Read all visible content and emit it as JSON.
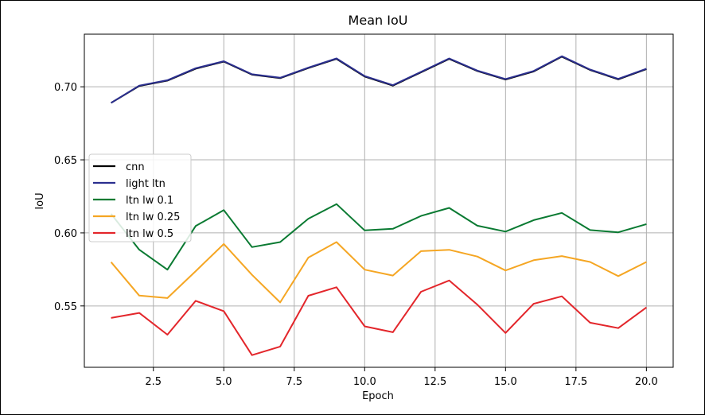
{
  "chart_data": {
    "type": "line",
    "title": "Mean IoU",
    "xlabel": "Epoch",
    "ylabel": "IoU",
    "xlim": [
      0.05,
      20.95
    ],
    "ylim": [
      0.508,
      0.736
    ],
    "xticks": [
      2.5,
      5.0,
      7.5,
      10.0,
      12.5,
      15.0,
      17.5,
      20.0
    ],
    "xtick_labels": [
      "2.5",
      "5.0",
      "7.5",
      "10.0",
      "12.5",
      "15.0",
      "17.5",
      "20.0"
    ],
    "yticks": [
      0.55,
      0.6,
      0.65,
      0.7
    ],
    "ytick_labels": [
      "0.55",
      "0.60",
      "0.65",
      "0.70"
    ],
    "grid": true,
    "legend_position": "center-left",
    "x": [
      1,
      2,
      3,
      4,
      5,
      6,
      7,
      8,
      9,
      10,
      11,
      12,
      13,
      14,
      15,
      16,
      17,
      18,
      19,
      20
    ],
    "series": [
      {
        "name": "cnn",
        "color": "#000000",
        "values": [
          0.689,
          0.7005,
          0.7042,
          0.7124,
          0.7172,
          0.7083,
          0.7059,
          0.7128,
          0.7191,
          0.707,
          0.7008,
          0.7099,
          0.7191,
          0.7108,
          0.705,
          0.7105,
          0.7206,
          0.7115,
          0.7051,
          0.7121
        ]
      },
      {
        "name": "light ltn",
        "color": "#2b2f8f",
        "values": [
          0.689,
          0.7008,
          0.7045,
          0.7127,
          0.7175,
          0.7086,
          0.7062,
          0.7131,
          0.7194,
          0.7073,
          0.7011,
          0.7102,
          0.7194,
          0.7111,
          0.7053,
          0.7108,
          0.7209,
          0.7118,
          0.7054,
          0.7124
        ]
      },
      {
        "name": "ltn lw 0.1",
        "color": "#0a7a32",
        "values": [
          0.613,
          0.5885,
          0.5748,
          0.6047,
          0.6156,
          0.5903,
          0.5937,
          0.6097,
          0.6197,
          0.6017,
          0.6028,
          0.6116,
          0.6171,
          0.6049,
          0.6009,
          0.6087,
          0.6137,
          0.6019,
          0.6004,
          0.606
        ]
      },
      {
        "name": "ltn lw 0.25",
        "color": "#f5a623",
        "values": [
          0.58,
          0.5571,
          0.5554,
          0.5738,
          0.5924,
          0.5713,
          0.5524,
          0.5831,
          0.5937,
          0.5748,
          0.5708,
          0.5875,
          0.5884,
          0.5838,
          0.5743,
          0.5813,
          0.5841,
          0.5801,
          0.5704,
          0.5801
        ]
      },
      {
        "name": "ltn lw 0.5",
        "color": "#e3262b",
        "values": [
          0.5418,
          0.5452,
          0.5303,
          0.5535,
          0.5464,
          0.5163,
          0.5222,
          0.557,
          0.5628,
          0.536,
          0.532,
          0.5597,
          0.5674,
          0.5509,
          0.5315,
          0.5515,
          0.5566,
          0.5385,
          0.5348,
          0.549
        ]
      }
    ]
  }
}
